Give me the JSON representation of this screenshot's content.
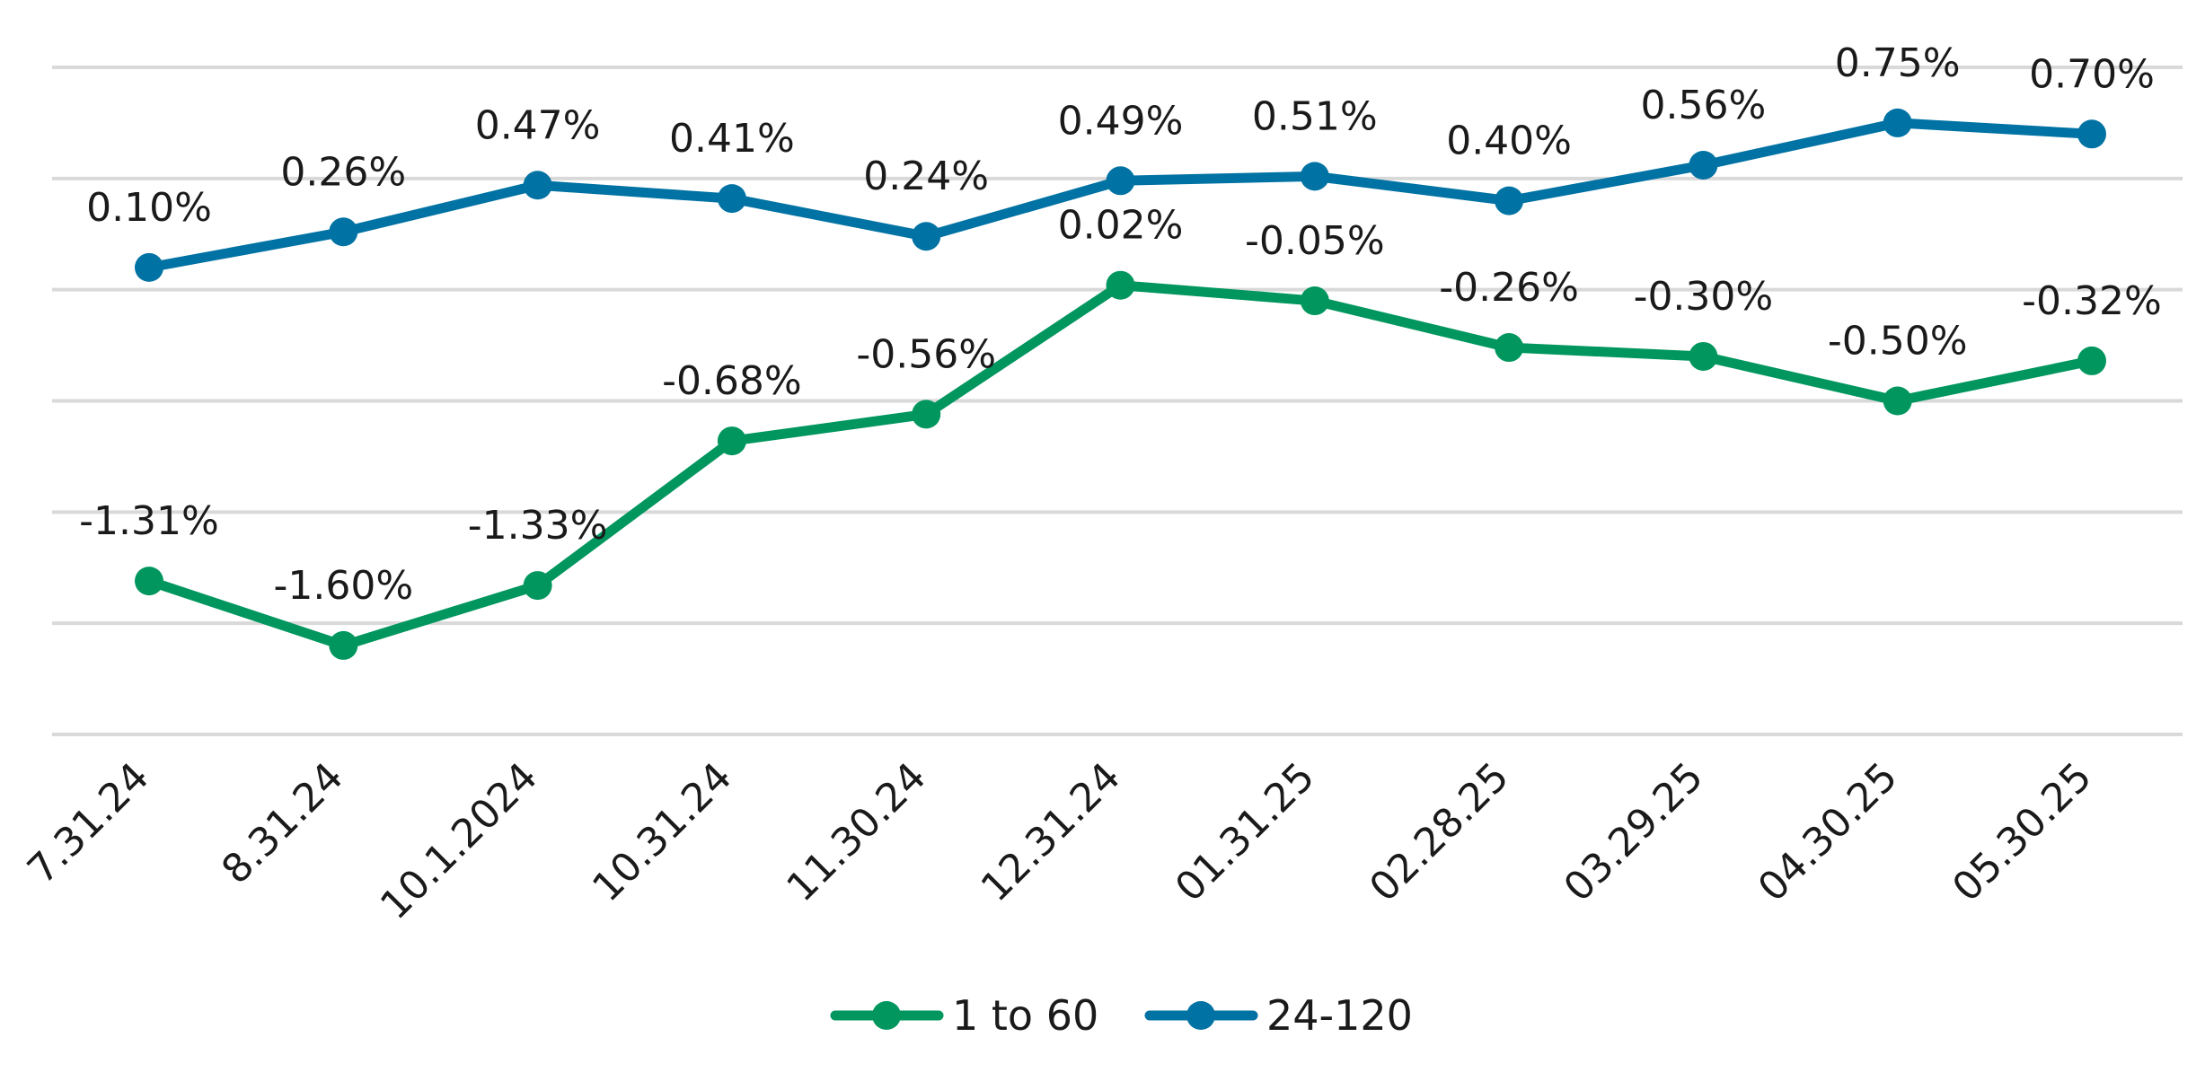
{
  "chart_data": {
    "type": "line",
    "categories": [
      "7.31.24",
      "8.31.24",
      "10.1.2024",
      "10.31.24",
      "11.30.24",
      "12.31.24",
      "01.31.25",
      "02.28.25",
      "03.29.25",
      "04.30.25",
      "05.30.25"
    ],
    "series": [
      {
        "name": "1 to 60",
        "color": "#00965e",
        "values": [
          -1.31,
          -1.6,
          -1.33,
          -0.68,
          -0.56,
          0.02,
          -0.05,
          -0.26,
          -0.3,
          -0.5,
          -0.32
        ],
        "labels": [
          "-1.31%",
          "-1.60%",
          "-1.33%",
          "-0.68%",
          "-0.56%",
          "0.02%",
          "-0.05%",
          "-0.26%",
          "-0.30%",
          "-0.50%",
          "-0.32%"
        ]
      },
      {
        "name": "24-120",
        "color": "#0072a3",
        "values": [
          0.1,
          0.26,
          0.47,
          0.41,
          0.24,
          0.49,
          0.51,
          0.4,
          0.56,
          0.75,
          0.7
        ],
        "labels": [
          "0.10%",
          "0.26%",
          "0.47%",
          "0.41%",
          "0.24%",
          "0.49%",
          "0.51%",
          "0.40%",
          "0.56%",
          "0.75%",
          "0.70%"
        ]
      }
    ],
    "ylim": [
      -2.0,
      1.0
    ],
    "gridline_values": [
      1.0,
      0.5,
      0.0,
      -0.5,
      -1.0,
      -1.5,
      -2.0
    ],
    "y_tick_labels_shown": false,
    "grid": true,
    "legend": "bottom",
    "title": "",
    "xlabel": "",
    "ylabel": ""
  }
}
